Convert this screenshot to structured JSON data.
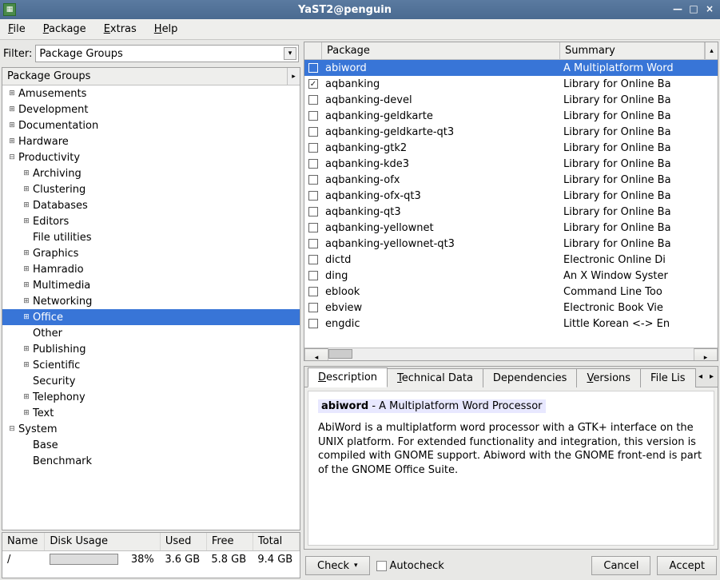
{
  "window": {
    "title": "YaST2@penguin"
  },
  "menu": {
    "file": "File",
    "package": "Package",
    "extras": "Extras",
    "help": "Help"
  },
  "filter": {
    "label": "Filter:",
    "value": "Package Groups"
  },
  "tree_header": "Package Groups",
  "tree": [
    {
      "label": "Amusements",
      "depth": 0,
      "exp": "plus"
    },
    {
      "label": "Development",
      "depth": 0,
      "exp": "plus"
    },
    {
      "label": "Documentation",
      "depth": 0,
      "exp": "plus"
    },
    {
      "label": "Hardware",
      "depth": 0,
      "exp": "plus"
    },
    {
      "label": "Productivity",
      "depth": 0,
      "exp": "minus"
    },
    {
      "label": "Archiving",
      "depth": 1,
      "exp": "plus"
    },
    {
      "label": "Clustering",
      "depth": 1,
      "exp": "plus"
    },
    {
      "label": "Databases",
      "depth": 1,
      "exp": "plus"
    },
    {
      "label": "Editors",
      "depth": 1,
      "exp": "plus"
    },
    {
      "label": "File utilities",
      "depth": 1,
      "exp": "none"
    },
    {
      "label": "Graphics",
      "depth": 1,
      "exp": "plus"
    },
    {
      "label": "Hamradio",
      "depth": 1,
      "exp": "plus"
    },
    {
      "label": "Multimedia",
      "depth": 1,
      "exp": "plus"
    },
    {
      "label": "Networking",
      "depth": 1,
      "exp": "plus"
    },
    {
      "label": "Office",
      "depth": 1,
      "exp": "plus",
      "selected": true
    },
    {
      "label": "Other",
      "depth": 1,
      "exp": "none"
    },
    {
      "label": "Publishing",
      "depth": 1,
      "exp": "plus"
    },
    {
      "label": "Scientific",
      "depth": 1,
      "exp": "plus"
    },
    {
      "label": "Security",
      "depth": 1,
      "exp": "none"
    },
    {
      "label": "Telephony",
      "depth": 1,
      "exp": "plus"
    },
    {
      "label": "Text",
      "depth": 1,
      "exp": "plus"
    },
    {
      "label": "System",
      "depth": 0,
      "exp": "minus"
    },
    {
      "label": "Base",
      "depth": 1,
      "exp": "none"
    },
    {
      "label": "Benchmark",
      "depth": 1,
      "exp": "none"
    }
  ],
  "disk": {
    "cols": {
      "name": "Name",
      "usage": "Disk Usage",
      "used": "Used",
      "free": "Free",
      "total": "Total"
    },
    "row": {
      "name": "/",
      "pct": "38%",
      "pctval": 38,
      "used": "3.6 GB",
      "free": "5.8 GB",
      "total": "9.4 GB"
    }
  },
  "pkgcols": {
    "pkg": "Package",
    "sum": "Summary"
  },
  "packages": [
    {
      "name": "abiword",
      "summary": "A Multiplatform Word",
      "checked": false,
      "selected": true
    },
    {
      "name": "aqbanking",
      "summary": "Library for Online Ba",
      "checked": true
    },
    {
      "name": "aqbanking-devel",
      "summary": "Library for Online Ba",
      "checked": false
    },
    {
      "name": "aqbanking-geldkarte",
      "summary": "Library for Online Ba",
      "checked": false
    },
    {
      "name": "aqbanking-geldkarte-qt3",
      "summary": "Library for Online Ba",
      "checked": false
    },
    {
      "name": "aqbanking-gtk2",
      "summary": "Library for Online Ba",
      "checked": false
    },
    {
      "name": "aqbanking-kde3",
      "summary": "Library for Online Ba",
      "checked": false
    },
    {
      "name": "aqbanking-ofx",
      "summary": "Library for Online Ba",
      "checked": false
    },
    {
      "name": "aqbanking-ofx-qt3",
      "summary": "Library for Online Ba",
      "checked": false
    },
    {
      "name": "aqbanking-qt3",
      "summary": "Library for Online Ba",
      "checked": false
    },
    {
      "name": "aqbanking-yellownet",
      "summary": "Library for Online Ba",
      "checked": false
    },
    {
      "name": "aqbanking-yellownet-qt3",
      "summary": "Library for Online Ba",
      "checked": false
    },
    {
      "name": "dictd",
      "summary": "Electronic Online Di",
      "checked": false
    },
    {
      "name": "ding",
      "summary": "An X Window Syster",
      "checked": false
    },
    {
      "name": "eblook",
      "summary": "Command Line Too",
      "checked": false
    },
    {
      "name": "ebview",
      "summary": "Electronic Book Vie",
      "checked": false
    },
    {
      "name": "engdic",
      "summary": "Little Korean <-> En",
      "checked": false
    }
  ],
  "tabs": {
    "description": "Description",
    "technical": "Technical Data",
    "dependencies": "Dependencies",
    "versions": "Versions",
    "filelist": "File Lis"
  },
  "detail": {
    "name": "abiword",
    "short": " - A Multiplatform Word Processor",
    "body": "AbiWord is a multiplatform word processor with a GTK+ interface on the UNIX platform. For extended functionality and integration, this version is compiled with GNOME support. Abiword with the GNOME front-end is part of the GNOME Office Suite."
  },
  "footer": {
    "check": "Check",
    "autocheck": "Autocheck",
    "cancel": "Cancel",
    "accept": "Accept"
  },
  "colors": {
    "selection": "#3875d7",
    "titlebar": "#4a6a90",
    "progress": "#2e7d32"
  }
}
